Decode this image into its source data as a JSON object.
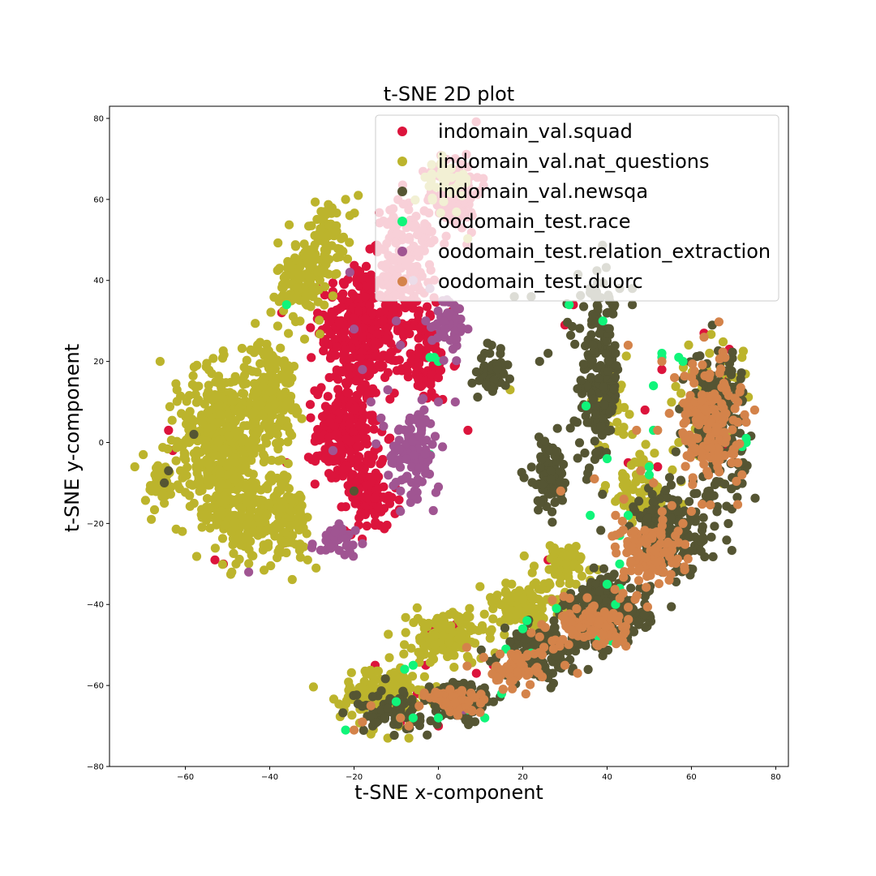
{
  "chart_data": {
    "type": "scatter",
    "title": "t-SNE 2D plot",
    "xlabel": "t-SNE x-component",
    "ylabel": "t-SNE y-component",
    "xlim": [
      -78,
      83
    ],
    "ylim": [
      -80,
      83
    ],
    "xticks": [
      -60,
      -40,
      -20,
      0,
      20,
      40,
      60,
      80
    ],
    "yticks": [
      -80,
      -60,
      -40,
      -20,
      0,
      20,
      40,
      60,
      80
    ],
    "grid": false,
    "legend_position": "top-right",
    "series": [
      {
        "name": "indomain_val.squad",
        "color": "#dc143c",
        "clusters": [
          {
            "cx": -19,
            "cy": 28,
            "rx": 9,
            "ry": 17,
            "n": 300
          },
          {
            "cx": -8,
            "cy": 42,
            "rx": 8,
            "ry": 17,
            "n": 200
          },
          {
            "cx": -22,
            "cy": 2,
            "rx": 7,
            "ry": 13,
            "n": 220
          },
          {
            "cx": -16,
            "cy": -14,
            "rx": 6,
            "ry": 8,
            "n": 90
          },
          {
            "cx": 4,
            "cy": 62,
            "rx": 6,
            "ry": 10,
            "n": 110
          },
          {
            "cx": -4,
            "cy": 20,
            "rx": 7,
            "ry": 10,
            "n": 90
          }
        ],
        "points": [
          [
            -64,
            3
          ],
          [
            -63,
            -2
          ],
          [
            -48,
            -3
          ],
          [
            -36,
            -5
          ],
          [
            -36,
            -14
          ],
          [
            -37,
            -25
          ],
          [
            -51,
            -30
          ],
          [
            -53,
            -29
          ],
          [
            7,
            3
          ],
          [
            45,
            -5
          ],
          [
            52,
            -6
          ],
          [
            49,
            8
          ],
          [
            53,
            18
          ],
          [
            68,
            -1
          ],
          [
            68,
            16
          ],
          [
            69,
            23
          ],
          [
            -15,
            -55
          ],
          [
            -3,
            -55
          ],
          [
            -9,
            -69
          ],
          [
            -5,
            -62
          ],
          [
            0,
            -70
          ],
          [
            26,
            -29
          ],
          [
            32,
            34
          ],
          [
            30,
            29
          ],
          [
            40,
            27
          ],
          [
            20,
            -47
          ],
          [
            9,
            -57
          ],
          [
            13,
            -55
          ],
          [
            -2,
            -46
          ],
          [
            4,
            -45
          ],
          [
            25,
            -55
          ],
          [
            44,
            -49
          ],
          [
            63,
            27
          ],
          [
            22,
            -41
          ]
        ]
      },
      {
        "name": "indomain_val.nat_questions",
        "color": "#bcb42c",
        "clusters": [
          {
            "cx": -52,
            "cy": 0,
            "rx": 10,
            "ry": 18,
            "n": 450
          },
          {
            "cx": -44,
            "cy": -18,
            "rx": 9,
            "ry": 11,
            "n": 210
          },
          {
            "cx": -40,
            "cy": 12,
            "rx": 6,
            "ry": 14,
            "n": 190
          },
          {
            "cx": -32,
            "cy": 40,
            "rx": 6,
            "ry": 10,
            "n": 140
          },
          {
            "cx": -26,
            "cy": 52,
            "rx": 5,
            "ry": 8,
            "n": 60
          },
          {
            "cx": -66,
            "cy": -10,
            "rx": 4,
            "ry": 5,
            "n": 45
          },
          {
            "cx": -35,
            "cy": -18,
            "rx": 4,
            "ry": 8,
            "n": 70
          },
          {
            "cx": -12,
            "cy": -62,
            "rx": 11,
            "ry": 7,
            "n": 170
          },
          {
            "cx": 2,
            "cy": -48,
            "rx": 9,
            "ry": 6,
            "n": 150
          },
          {
            "cx": 20,
            "cy": -40,
            "rx": 10,
            "ry": 5,
            "n": 110
          },
          {
            "cx": 30,
            "cy": -30,
            "rx": 7,
            "ry": 5,
            "n": 70
          },
          {
            "cx": 48,
            "cy": -12,
            "rx": 8,
            "ry": 9,
            "n": 80
          },
          {
            "cx": 64,
            "cy": 10,
            "rx": 8,
            "ry": 13,
            "n": 70
          },
          {
            "cx": 40,
            "cy": 10,
            "rx": 5,
            "ry": 8,
            "n": 50
          },
          {
            "cx": 2,
            "cy": 64,
            "rx": 6,
            "ry": 8,
            "n": 40
          }
        ],
        "points": [
          [
            -70,
            -3
          ],
          [
            -72,
            -6
          ],
          [
            -68,
            -12
          ],
          [
            -65,
            -15
          ],
          [
            -66,
            20
          ],
          [
            -62,
            13
          ],
          [
            -29,
            -31
          ],
          [
            -31,
            -29
          ],
          [
            -49,
            -32
          ],
          [
            -48,
            -30
          ],
          [
            -44,
            -28
          ],
          [
            -22,
            60
          ],
          [
            -19,
            61
          ],
          [
            -21,
            56
          ],
          [
            17,
            13
          ],
          [
            41,
            12
          ],
          [
            46,
            2
          ],
          [
            48,
            -18
          ],
          [
            58,
            -26
          ],
          [
            57,
            0
          ],
          [
            -16,
            -72
          ],
          [
            -12,
            -73
          ],
          [
            -7,
            -73
          ],
          [
            36,
            -34
          ],
          [
            72,
            21
          ]
        ]
      },
      {
        "name": "indomain_val.newsqa",
        "color": "#555533",
        "clusters": [
          {
            "cx": 38,
            "cy": 16,
            "rx": 5,
            "ry": 22,
            "n": 200
          },
          {
            "cx": 26,
            "cy": -8,
            "rx": 5,
            "ry": 9,
            "n": 80
          },
          {
            "cx": 13,
            "cy": 17,
            "rx": 3,
            "ry": 5,
            "n": 50
          },
          {
            "cx": 66,
            "cy": 5,
            "rx": 7,
            "ry": 18,
            "n": 220
          },
          {
            "cx": 55,
            "cy": -22,
            "rx": 8,
            "ry": 11,
            "n": 190
          },
          {
            "cx": 40,
            "cy": -42,
            "rx": 10,
            "ry": 8,
            "n": 240
          },
          {
            "cx": 24,
            "cy": -52,
            "rx": 9,
            "ry": 6,
            "n": 150
          },
          {
            "cx": 5,
            "cy": -64,
            "rx": 8,
            "ry": 5,
            "n": 130
          },
          {
            "cx": -12,
            "cy": -66,
            "rx": 8,
            "ry": 5,
            "n": 80
          }
        ],
        "points": [
          [
            -65,
            -10
          ],
          [
            -64,
            -7
          ],
          [
            -58,
            2
          ],
          [
            -20,
            -12
          ],
          [
            -3,
            -3
          ],
          [
            30,
            -10
          ],
          [
            24,
            20
          ],
          [
            26,
            22
          ],
          [
            14,
            18
          ],
          [
            11,
            22
          ],
          [
            40,
            25
          ],
          [
            43,
            38
          ],
          [
            46,
            38
          ],
          [
            46,
            34
          ],
          [
            18,
            36
          ],
          [
            22,
            36
          ],
          [
            42,
            22
          ],
          [
            36,
            38
          ]
        ]
      },
      {
        "name": "oodomain_test.race",
        "color": "#10f57a",
        "clusters": [],
        "points": [
          [
            -36,
            34
          ],
          [
            -2,
            21
          ],
          [
            0,
            20
          ],
          [
            -1,
            21
          ],
          [
            -2,
            -3
          ],
          [
            43,
            -30
          ],
          [
            43,
            -23
          ],
          [
            50,
            -6
          ],
          [
            50,
            -8
          ],
          [
            51,
            3
          ],
          [
            57,
            21
          ],
          [
            58,
            20
          ],
          [
            73,
            1
          ],
          [
            73,
            0
          ],
          [
            72,
            -1
          ],
          [
            51,
            14
          ],
          [
            53,
            21
          ],
          [
            53,
            22
          ],
          [
            40,
            -35
          ],
          [
            43,
            -36
          ],
          [
            42,
            -40
          ],
          [
            41,
            -49
          ],
          [
            38,
            -48
          ],
          [
            35,
            -44
          ],
          [
            33,
            -45
          ],
          [
            28,
            -41
          ],
          [
            21,
            -44
          ],
          [
            20,
            -46
          ],
          [
            22,
            -52
          ],
          [
            16,
            -51
          ],
          [
            -8,
            -56
          ],
          [
            -6,
            -55
          ],
          [
            -10,
            -64
          ],
          [
            -6,
            -68
          ],
          [
            -22,
            -71
          ],
          [
            0,
            -68
          ],
          [
            7,
            -66
          ],
          [
            11,
            -68
          ],
          [
            15,
            -62
          ],
          [
            36,
            -18
          ],
          [
            52,
            -31
          ],
          [
            48,
            -28
          ],
          [
            39,
            30
          ],
          [
            35,
            9
          ],
          [
            -9,
            -68
          ],
          [
            31,
            34
          ],
          [
            45,
            -18
          ],
          [
            40,
            -4
          ]
        ]
      },
      {
        "name": "oodomain_test.relation_extraction",
        "color": "#a05592",
        "clusters": [
          {
            "cx": -6,
            "cy": -2,
            "rx": 6,
            "ry": 10,
            "n": 100
          },
          {
            "cx": 3,
            "cy": 30,
            "rx": 4,
            "ry": 7,
            "n": 50
          },
          {
            "cx": -24,
            "cy": -24,
            "rx": 4,
            "ry": 3,
            "n": 35
          }
        ],
        "points": [
          [
            -20,
            28
          ],
          [
            -18,
            18
          ],
          [
            -16,
            10
          ],
          [
            -12,
            13
          ],
          [
            -9,
            24
          ],
          [
            -13,
            4
          ],
          [
            -25,
            -2
          ],
          [
            -21,
            -27
          ],
          [
            -18,
            -25
          ],
          [
            -30,
            -26
          ],
          [
            -45,
            -32
          ],
          [
            1,
            35
          ],
          [
            5,
            33
          ],
          [
            7,
            28
          ],
          [
            -2,
            38
          ],
          [
            -6,
            40
          ],
          [
            0,
            10
          ],
          [
            4,
            10
          ],
          [
            -3,
            30
          ],
          [
            -10,
            30
          ],
          [
            -21,
            42
          ],
          [
            -5,
            -14
          ],
          [
            -9,
            -17
          ],
          [
            0,
            -11
          ],
          [
            6,
            -66
          ]
        ]
      },
      {
        "name": "oodomain_test.duorc",
        "color": "#d4834a",
        "clusters": [
          {
            "cx": 64,
            "cy": 5,
            "rx": 7,
            "ry": 15,
            "n": 160
          },
          {
            "cx": 50,
            "cy": -28,
            "rx": 8,
            "ry": 9,
            "n": 120
          },
          {
            "cx": 37,
            "cy": -45,
            "rx": 8,
            "ry": 6,
            "n": 110
          },
          {
            "cx": 18,
            "cy": -56,
            "rx": 7,
            "ry": 5,
            "n": 70
          },
          {
            "cx": 5,
            "cy": -64,
            "rx": 7,
            "ry": 4,
            "n": 60
          }
        ],
        "points": [
          [
            -16,
            -65
          ],
          [
            -20,
            -71
          ],
          [
            -18,
            -69
          ],
          [
            -9,
            -68
          ],
          [
            -7,
            -70
          ],
          [
            0,
            -62
          ],
          [
            27,
            -49
          ],
          [
            24,
            -48
          ],
          [
            22,
            -47
          ],
          [
            30,
            -55
          ],
          [
            33,
            -57
          ],
          [
            42,
            -18
          ],
          [
            48,
            -7
          ],
          [
            52,
            3
          ],
          [
            51,
            -10
          ],
          [
            44,
            -14
          ],
          [
            63,
            26
          ],
          [
            56,
            16
          ],
          [
            71,
            10
          ],
          [
            71,
            5
          ],
          [
            73,
            5
          ],
          [
            60,
            -17
          ],
          [
            58,
            -20
          ],
          [
            75,
            8
          ],
          [
            71,
            -5
          ],
          [
            72,
            -8
          ],
          [
            68,
            0
          ],
          [
            29,
            -12
          ],
          [
            37,
            -9
          ],
          [
            47,
            3
          ],
          [
            53,
            20
          ],
          [
            45,
            24
          ]
        ]
      }
    ]
  }
}
